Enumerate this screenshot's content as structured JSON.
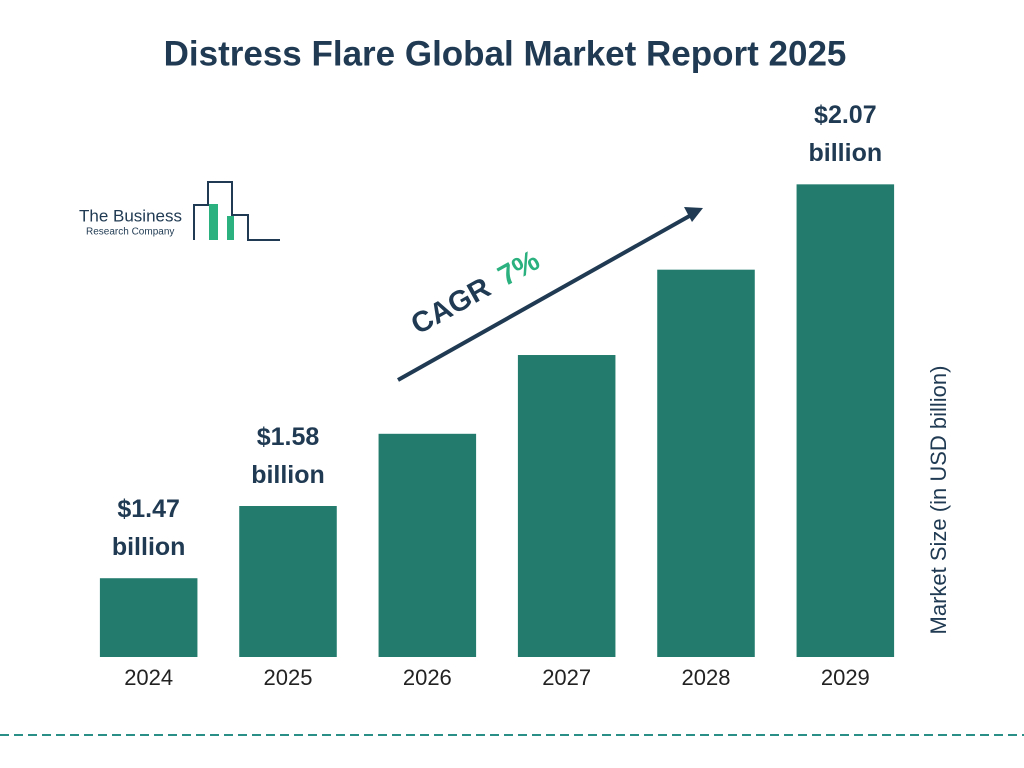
{
  "chart_data": {
    "type": "bar",
    "title": "Distress Flare Global Market Report 2025",
    "categories": [
      "2024",
      "2025",
      "2026",
      "2027",
      "2028",
      "2029"
    ],
    "values": [
      1.47,
      1.58,
      1.69,
      1.81,
      1.94,
      2.07
    ],
    "value_labels": [
      "$1.47 billion",
      "$1.58 billion",
      null,
      null,
      null,
      "$2.07 billion"
    ],
    "color": "#227b6c",
    "ylim": [
      1.35,
      2.2
    ],
    "y_axis_label": "Market Size (in USD billion)",
    "cagr_label": "CAGR",
    "cagr_value": "7%"
  },
  "logo": {
    "line1": "The Business",
    "line2": "Research Company"
  }
}
